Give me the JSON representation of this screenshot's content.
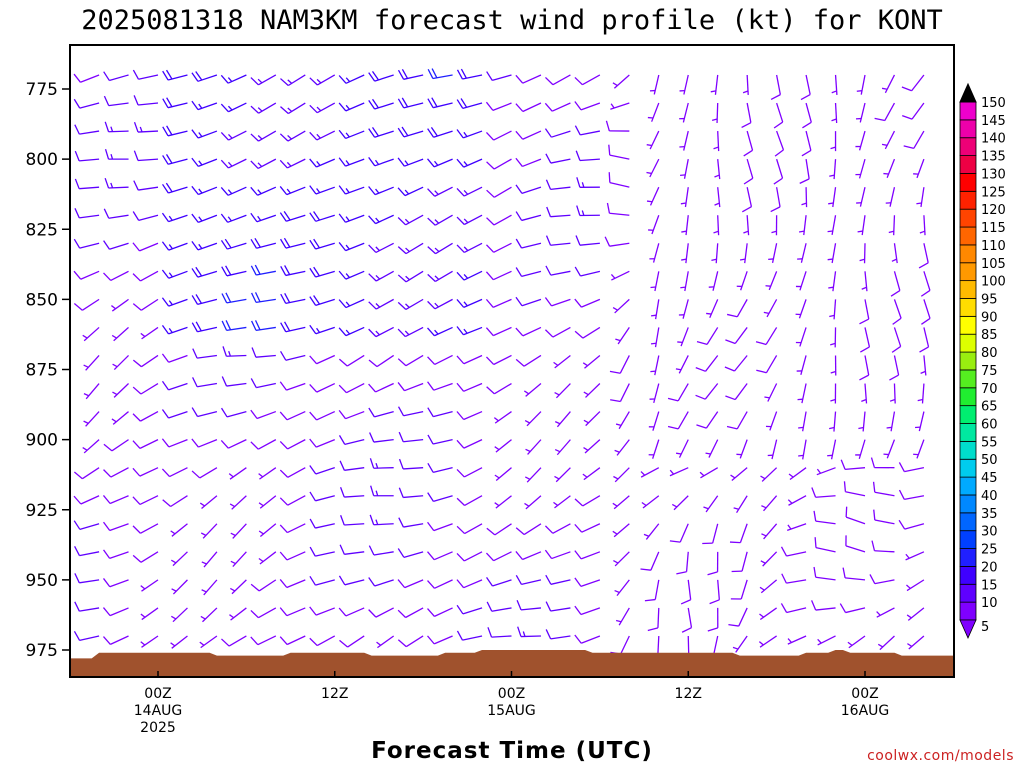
{
  "chart_data": {
    "type": "wind-barb-profile",
    "title": "2025081318 NAM3KM forecast wind profile (kt) for KONT",
    "xlabel": "Forecast Time (UTC)",
    "ylabel": "",
    "credit": "coolwx.com/models",
    "y_ticks": [
      775,
      800,
      825,
      850,
      875,
      900,
      925,
      950,
      975
    ],
    "ylim": [
      755,
      985
    ],
    "y_axis_inverted": true,
    "x_ticks": [
      {
        "time_hours": 0,
        "lines": [
          "00Z",
          "14AUG",
          "2025"
        ]
      },
      {
        "time_hours": 12,
        "lines": [
          "12Z"
        ]
      },
      {
        "time_hours": 24,
        "lines": [
          "00Z",
          "15AUG"
        ]
      },
      {
        "time_hours": 36,
        "lines": [
          "12Z"
        ]
      },
      {
        "time_hours": 48,
        "lines": [
          "00Z",
          "16AUG"
        ]
      }
    ],
    "xlim": [
      -6,
      54
    ],
    "forecast_hours_range": [
      -6,
      54
    ],
    "wind_units": "kt",
    "color_scale": {
      "labels": [
        5,
        10,
        15,
        20,
        25,
        30,
        35,
        40,
        45,
        50,
        55,
        60,
        65,
        70,
        75,
        80,
        85,
        90,
        95,
        100,
        105,
        110,
        115,
        120,
        125,
        130,
        135,
        140,
        145,
        150
      ],
      "colors": [
        "#7f00ff",
        "#5f00ff",
        "#3f00ff",
        "#2020ff",
        "#0040ff",
        "#0066ff",
        "#0088ff",
        "#00aaff",
        "#00ccee",
        "#00ddcc",
        "#00e8a0",
        "#00ee70",
        "#20ee30",
        "#55ee20",
        "#99ee10",
        "#ddff00",
        "#ffff00",
        "#ffdd00",
        "#ffbb00",
        "#ff9900",
        "#ff8800",
        "#ff6600",
        "#ff4400",
        "#ff2200",
        "#ff0000",
        "#ee0044",
        "#ee0077",
        "#ee00aa",
        "#ee00cc",
        "#000000"
      ]
    },
    "terrain_color": "#a0522d",
    "terrain_surface_pressure_by_hour": [
      {
        "hour": -6,
        "p": 978
      },
      {
        "hour": -4.5,
        "p": 978
      },
      {
        "hour": -4,
        "p": 976
      },
      {
        "hour": 3.5,
        "p": 976
      },
      {
        "hour": 4,
        "p": 977
      },
      {
        "hour": 8.5,
        "p": 977
      },
      {
        "hour": 9,
        "p": 976
      },
      {
        "hour": 14,
        "p": 976
      },
      {
        "hour": 14.5,
        "p": 977
      },
      {
        "hour": 19,
        "p": 977
      },
      {
        "hour": 19.5,
        "p": 976
      },
      {
        "hour": 21.5,
        "p": 976
      },
      {
        "hour": 22,
        "p": 975
      },
      {
        "hour": 29,
        "p": 975
      },
      {
        "hour": 29.5,
        "p": 976
      },
      {
        "hour": 39,
        "p": 976
      },
      {
        "hour": 39.5,
        "p": 977
      },
      {
        "hour": 43.5,
        "p": 977
      },
      {
        "hour": 44,
        "p": 976
      },
      {
        "hour": 45.5,
        "p": 976
      },
      {
        "hour": 46,
        "p": 975
      },
      {
        "hour": 46.5,
        "p": 975
      },
      {
        "hour": 47,
        "p": 976
      },
      {
        "hour": 50,
        "p": 976
      },
      {
        "hour": 50.5,
        "p": 977
      },
      {
        "hour": 54,
        "p": 977
      }
    ],
    "barb_levels_hpa": [
      760,
      770,
      780,
      790,
      800,
      810,
      820,
      830,
      840,
      850,
      860,
      870,
      880,
      890,
      900,
      910,
      920,
      930,
      940,
      950,
      960,
      970
    ],
    "barb_hours": [
      -4,
      -2,
      0,
      2,
      4,
      6,
      8,
      10,
      12,
      14,
      16,
      18,
      20,
      22,
      24,
      26,
      28,
      30,
      32,
      34,
      36,
      38,
      40,
      42,
      44,
      46,
      48,
      50,
      52
    ],
    "barb_field": {
      "westerly_period_hours": [
        -4,
        30
      ],
      "westerly_core_levels_hpa": [
        760,
        860
      ],
      "westerly_core_hours": [
        2,
        22
      ],
      "westerly_core_speed_kt": 17,
      "background_speed_kt": [
        5,
        12
      ],
      "southerly_light_period_hours": [
        34,
        52
      ],
      "southerly_light_levels_hpa": [
        760,
        900
      ]
    }
  }
}
